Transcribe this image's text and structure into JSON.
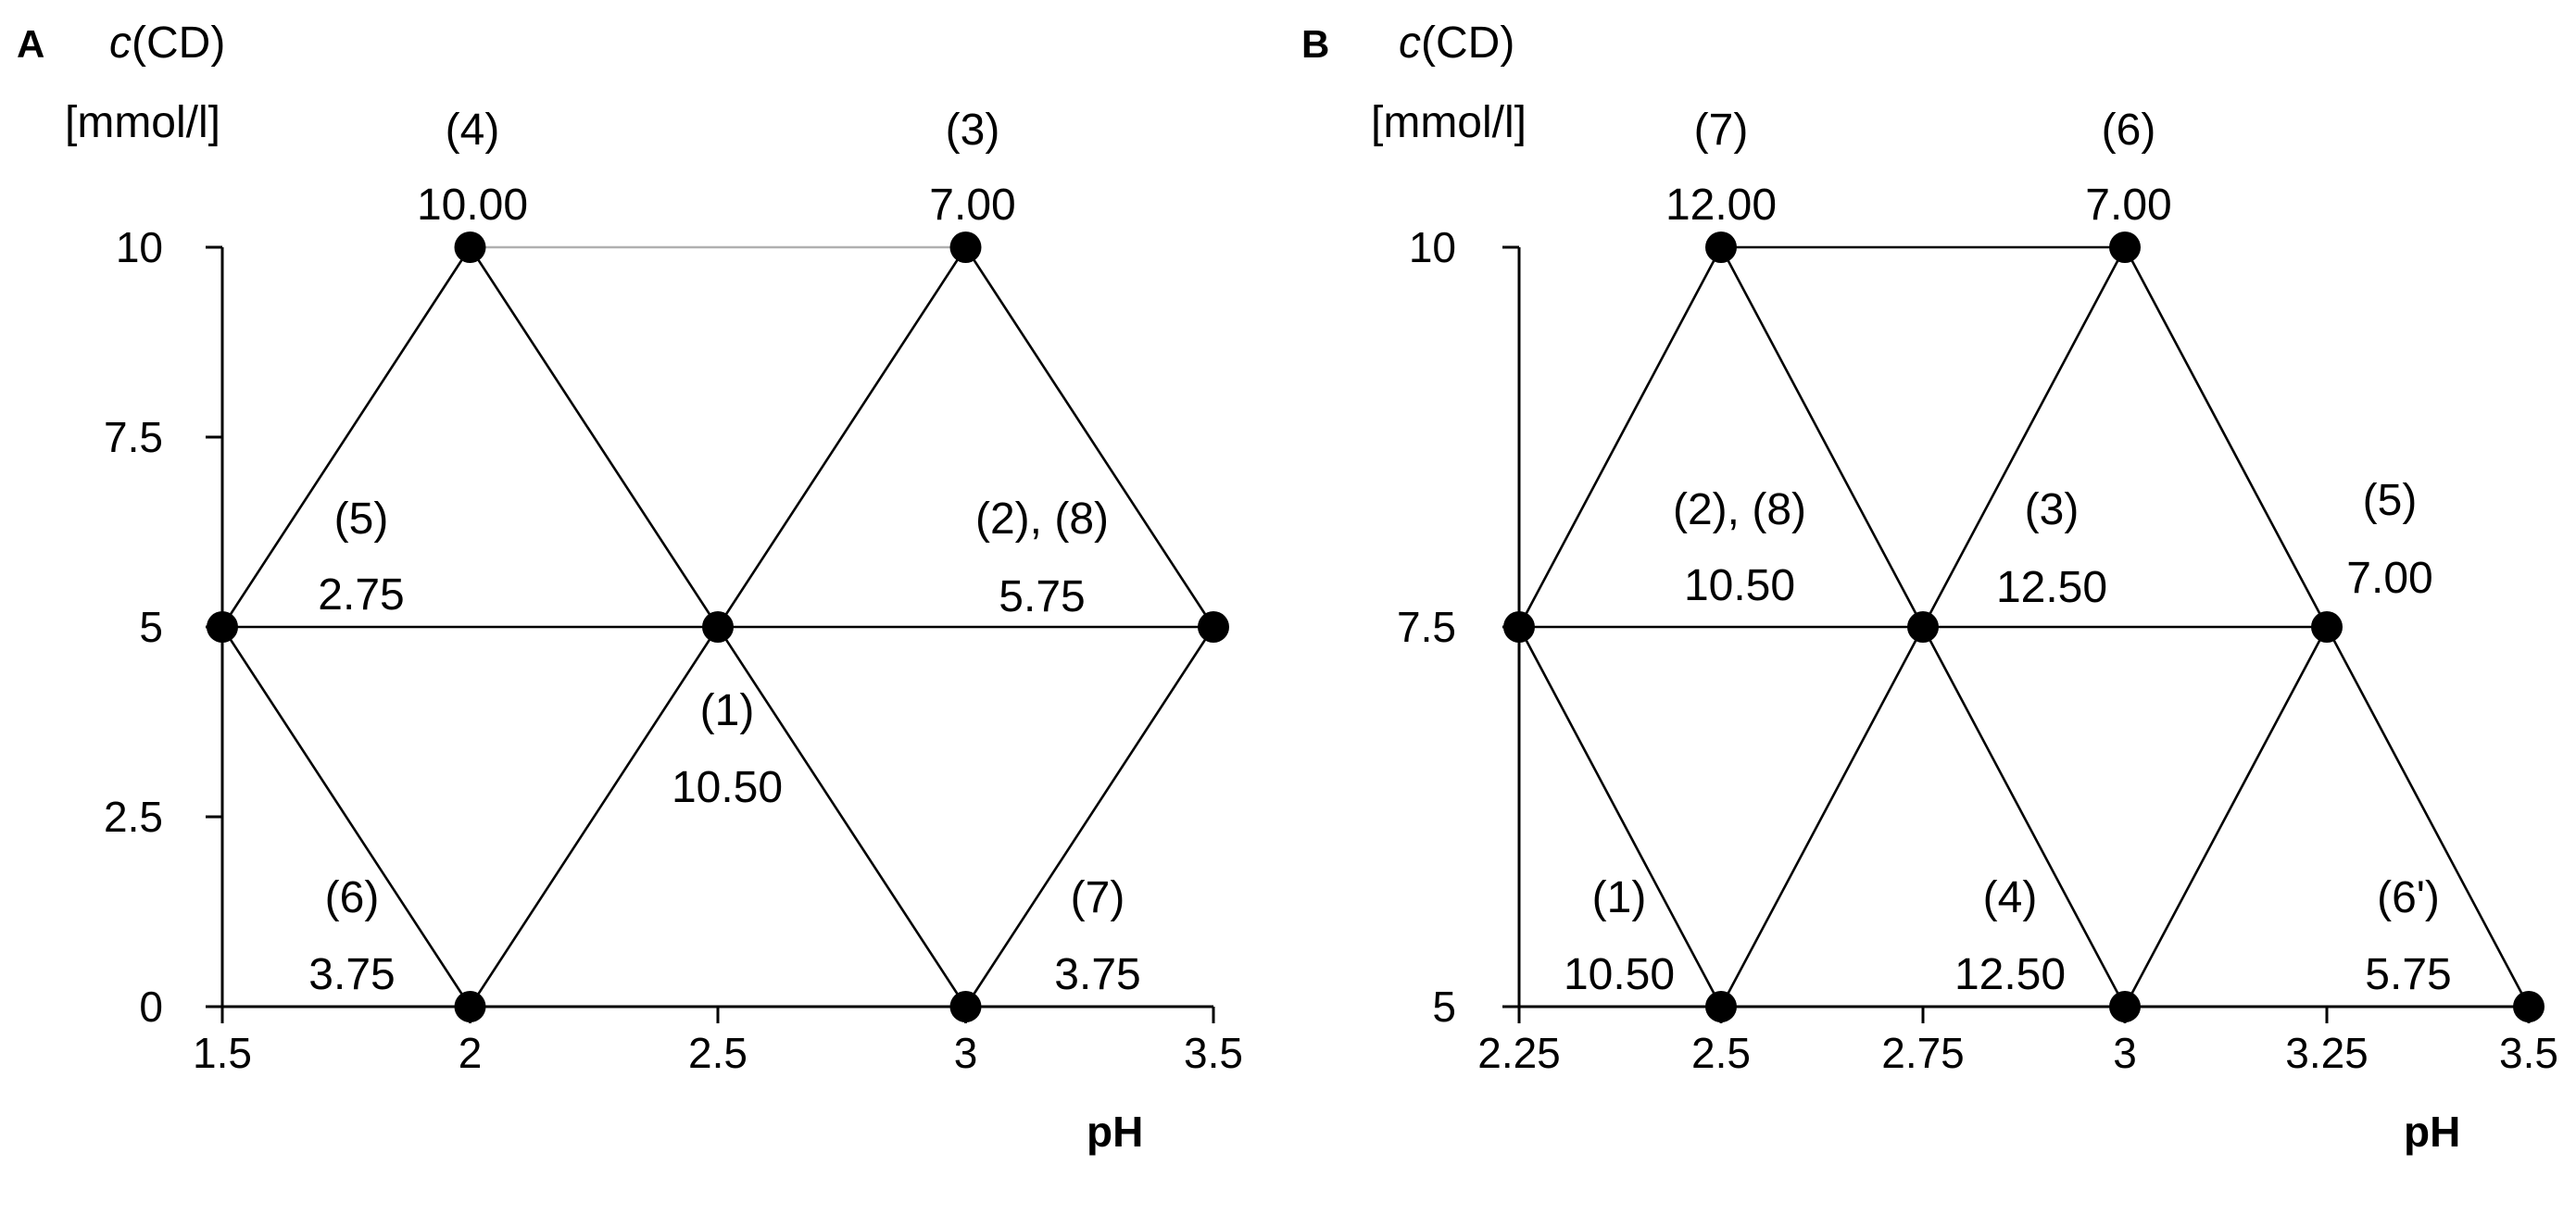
{
  "chart_data": [
    {
      "type": "scatter",
      "panel": "A",
      "ylabel_var": "c",
      "ylabel_rest": "(CD)",
      "ylabel_unit": "[mmol/l]",
      "xlabel": "pH",
      "xlim": [
        1.5,
        3.5
      ],
      "ylim": [
        0,
        10
      ],
      "xticks": [
        "1.5",
        "2",
        "2.5",
        "3",
        "3.5"
      ],
      "yticks": [
        "0",
        "2.5",
        "5",
        "7.5",
        "10"
      ],
      "xtick_values": [
        1.5,
        2,
        2.5,
        3,
        3.5
      ],
      "ytick_values": [
        0,
        2.5,
        5,
        7.5,
        10
      ],
      "points": [
        {
          "x": 1.5,
          "y": 5
        },
        {
          "x": 2,
          "y": 10
        },
        {
          "x": 3,
          "y": 10
        },
        {
          "x": 2.5,
          "y": 5
        },
        {
          "x": 3.5,
          "y": 5
        },
        {
          "x": 2,
          "y": 0
        },
        {
          "x": 3,
          "y": 0
        }
      ],
      "edges": [
        {
          "from": [
            2,
            10
          ],
          "to": [
            3,
            10
          ],
          "light": true
        },
        {
          "from": [
            1.5,
            5
          ],
          "to": [
            3.5,
            5
          ]
        },
        {
          "from": [
            1.5,
            5
          ],
          "to": [
            2,
            10
          ]
        },
        {
          "from": [
            2,
            10
          ],
          "to": [
            3,
            0
          ]
        },
        {
          "from": [
            2.5,
            5
          ],
          "to": [
            3,
            10
          ]
        },
        {
          "from": [
            3,
            10
          ],
          "to": [
            3.5,
            5
          ]
        },
        {
          "from": [
            1.5,
            5
          ],
          "to": [
            2,
            0
          ]
        },
        {
          "from": [
            2,
            0
          ],
          "to": [
            2.5,
            5
          ]
        },
        {
          "from": [
            3,
            0
          ],
          "to": [
            3.5,
            5
          ]
        }
      ],
      "annotations": [
        {
          "label": "(4)",
          "value": "10.00"
        },
        {
          "label": "(3)",
          "value": "7.00"
        },
        {
          "label": "(5)",
          "value": "2.75"
        },
        {
          "label": "(2), (8)",
          "value": "5.75"
        },
        {
          "label": "(1)",
          "value": "10.50"
        },
        {
          "label": "(6)",
          "value": "3.75"
        },
        {
          "label": "(7)",
          "value": "3.75"
        }
      ]
    },
    {
      "type": "scatter",
      "panel": "B",
      "ylabel_var": "c",
      "ylabel_rest": "(CD)",
      "ylabel_unit": "[mmol/l]",
      "xlabel": "pH",
      "xlim": [
        2.25,
        3.5
      ],
      "ylim": [
        5,
        10
      ],
      "xticks": [
        "2.25",
        "2.5",
        "2.75",
        "3",
        "3.25",
        "3.5"
      ],
      "yticks": [
        "5",
        "7.5",
        "10"
      ],
      "xtick_values": [
        2.25,
        2.5,
        2.75,
        3,
        3.25,
        3.5
      ],
      "ytick_values": [
        5,
        7.5,
        10
      ],
      "points": [
        {
          "x": 2.5,
          "y": 10
        },
        {
          "x": 3,
          "y": 10
        },
        {
          "x": 2.25,
          "y": 7.5
        },
        {
          "x": 2.75,
          "y": 7.5
        },
        {
          "x": 3.25,
          "y": 7.5
        },
        {
          "x": 2.5,
          "y": 5
        },
        {
          "x": 3,
          "y": 5
        },
        {
          "x": 3.5,
          "y": 5
        }
      ],
      "edges": [
        {
          "from": [
            2.5,
            10
          ],
          "to": [
            3,
            10
          ]
        },
        {
          "from": [
            2.25,
            7.5
          ],
          "to": [
            3.25,
            7.5
          ]
        },
        {
          "from": [
            2.5,
            5
          ],
          "to": [
            3.5,
            5
          ]
        },
        {
          "from": [
            2.25,
            7.5
          ],
          "to": [
            2.5,
            10
          ]
        },
        {
          "from": [
            2.5,
            10
          ],
          "to": [
            3,
            5
          ]
        },
        {
          "from": [
            2.5,
            5
          ],
          "to": [
            3,
            10
          ]
        },
        {
          "from": [
            3,
            10
          ],
          "to": [
            3.5,
            5
          ]
        },
        {
          "from": [
            2.25,
            7.5
          ],
          "to": [
            2.5,
            5
          ]
        },
        {
          "from": [
            3,
            5
          ],
          "to": [
            3.25,
            7.5
          ]
        }
      ],
      "annotations": [
        {
          "label": "(7)",
          "value": "12.00"
        },
        {
          "label": "(6)",
          "value": "7.00"
        },
        {
          "label": "(2), (8)",
          "value": "10.50"
        },
        {
          "label": "(3)",
          "value": "12.50"
        },
        {
          "label": "(5)",
          "value": "7.00"
        },
        {
          "label": "(1)",
          "value": "10.50"
        },
        {
          "label": "(4)",
          "value": "12.50"
        },
        {
          "label": "(6')",
          "value": "5.75"
        }
      ]
    }
  ]
}
